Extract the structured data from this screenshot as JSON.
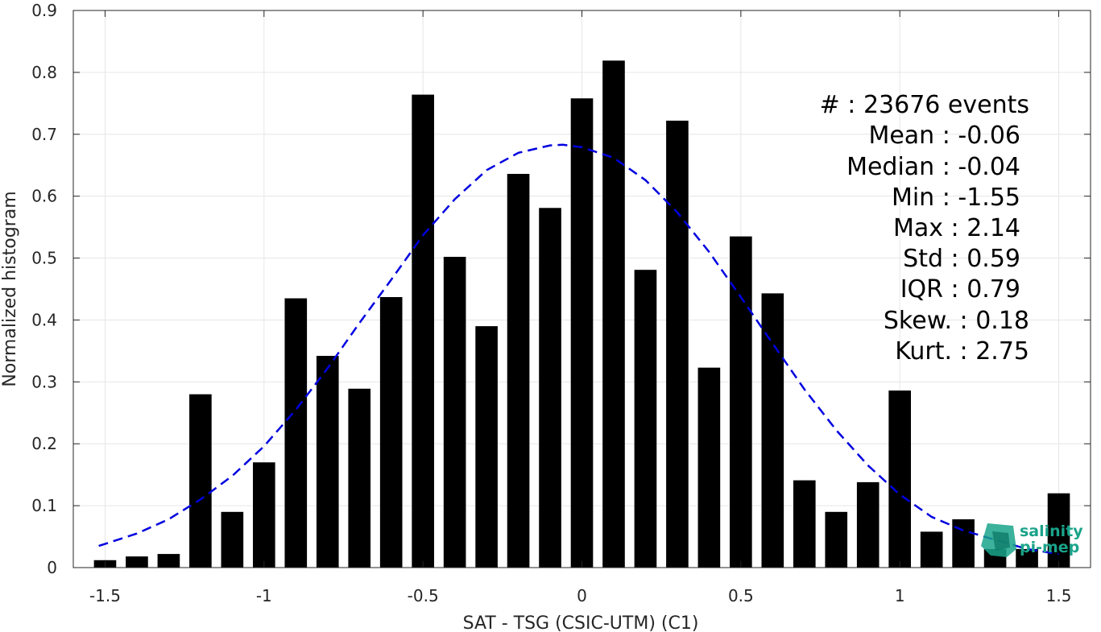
{
  "chart_data": {
    "type": "bar",
    "xlabel": "SAT - TSG (CSIC-UTM) (C1)",
    "ylabel": "Normalized histogram",
    "xlim": [
      -1.6,
      1.6
    ],
    "ylim": [
      0,
      0.9
    ],
    "xticks": [
      -1.5,
      -1,
      -0.5,
      0,
      0.5,
      1,
      1.5
    ],
    "xtick_labels": [
      "-1.5",
      "-1",
      "-0.5",
      "0",
      "0.5",
      "1",
      "1.5"
    ],
    "yticks": [
      0,
      0.1,
      0.2,
      0.3,
      0.4,
      0.5,
      0.6,
      0.7,
      0.8,
      0.9
    ],
    "ytick_labels": [
      "0",
      "0.1",
      "0.2",
      "0.3",
      "0.4",
      "0.5",
      "0.6",
      "0.7",
      "0.8",
      "0.9"
    ],
    "grid": true,
    "bar_width": 0.07,
    "bar_color": "#000000",
    "bars": {
      "x": [
        -1.5,
        -1.4,
        -1.3,
        -1.2,
        -1.1,
        -1.0,
        -0.9,
        -0.8,
        -0.7,
        -0.6,
        -0.5,
        -0.4,
        -0.3,
        -0.2,
        -0.1,
        0.0,
        0.1,
        0.2,
        0.3,
        0.4,
        0.5,
        0.6,
        0.7,
        0.8,
        0.9,
        1.0,
        1.1,
        1.2,
        1.3,
        1.4,
        1.5
      ],
      "values": [
        0.012,
        0.018,
        0.022,
        0.28,
        0.09,
        0.17,
        0.435,
        0.342,
        0.289,
        0.437,
        0.764,
        0.502,
        0.39,
        0.636,
        0.581,
        0.758,
        0.819,
        0.481,
        0.722,
        0.323,
        0.535,
        0.443,
        0.141,
        0.09,
        0.138,
        0.286,
        0.058,
        0.078,
        0.03,
        0.03,
        0.12
      ]
    },
    "fit_curve": {
      "style": "dashed",
      "color": "#0000e0",
      "x": [
        -1.52,
        -1.4,
        -1.3,
        -1.2,
        -1.1,
        -1.0,
        -0.9,
        -0.8,
        -0.7,
        -0.6,
        -0.5,
        -0.4,
        -0.3,
        -0.2,
        -0.1,
        -0.06,
        0.0,
        0.1,
        0.2,
        0.3,
        0.4,
        0.5,
        0.6,
        0.7,
        0.8,
        0.9,
        1.0,
        1.1,
        1.2,
        1.3,
        1.4,
        1.5
      ],
      "y": [
        0.035,
        0.055,
        0.078,
        0.11,
        0.148,
        0.196,
        0.255,
        0.322,
        0.395,
        0.465,
        0.537,
        0.595,
        0.642,
        0.67,
        0.682,
        0.683,
        0.679,
        0.662,
        0.626,
        0.574,
        0.51,
        0.437,
        0.362,
        0.288,
        0.222,
        0.165,
        0.118,
        0.082,
        0.06,
        0.045,
        0.03,
        0.022
      ]
    },
    "stats": [
      {
        "label": "#  : 23676 events"
      },
      {
        "label": "Mean : -0.06"
      },
      {
        "label": "Median : -0.04"
      },
      {
        "label": "Min : -1.55"
      },
      {
        "label": "Max : 2.14"
      },
      {
        "label": "Std : 0.59"
      },
      {
        "label": "IQR : 0.79"
      },
      {
        "label": "Skew. : 0.18"
      },
      {
        "label": "Kurt. : 2.75"
      }
    ]
  },
  "logo": {
    "line1": "salinity",
    "line2": "pi-mep"
  }
}
